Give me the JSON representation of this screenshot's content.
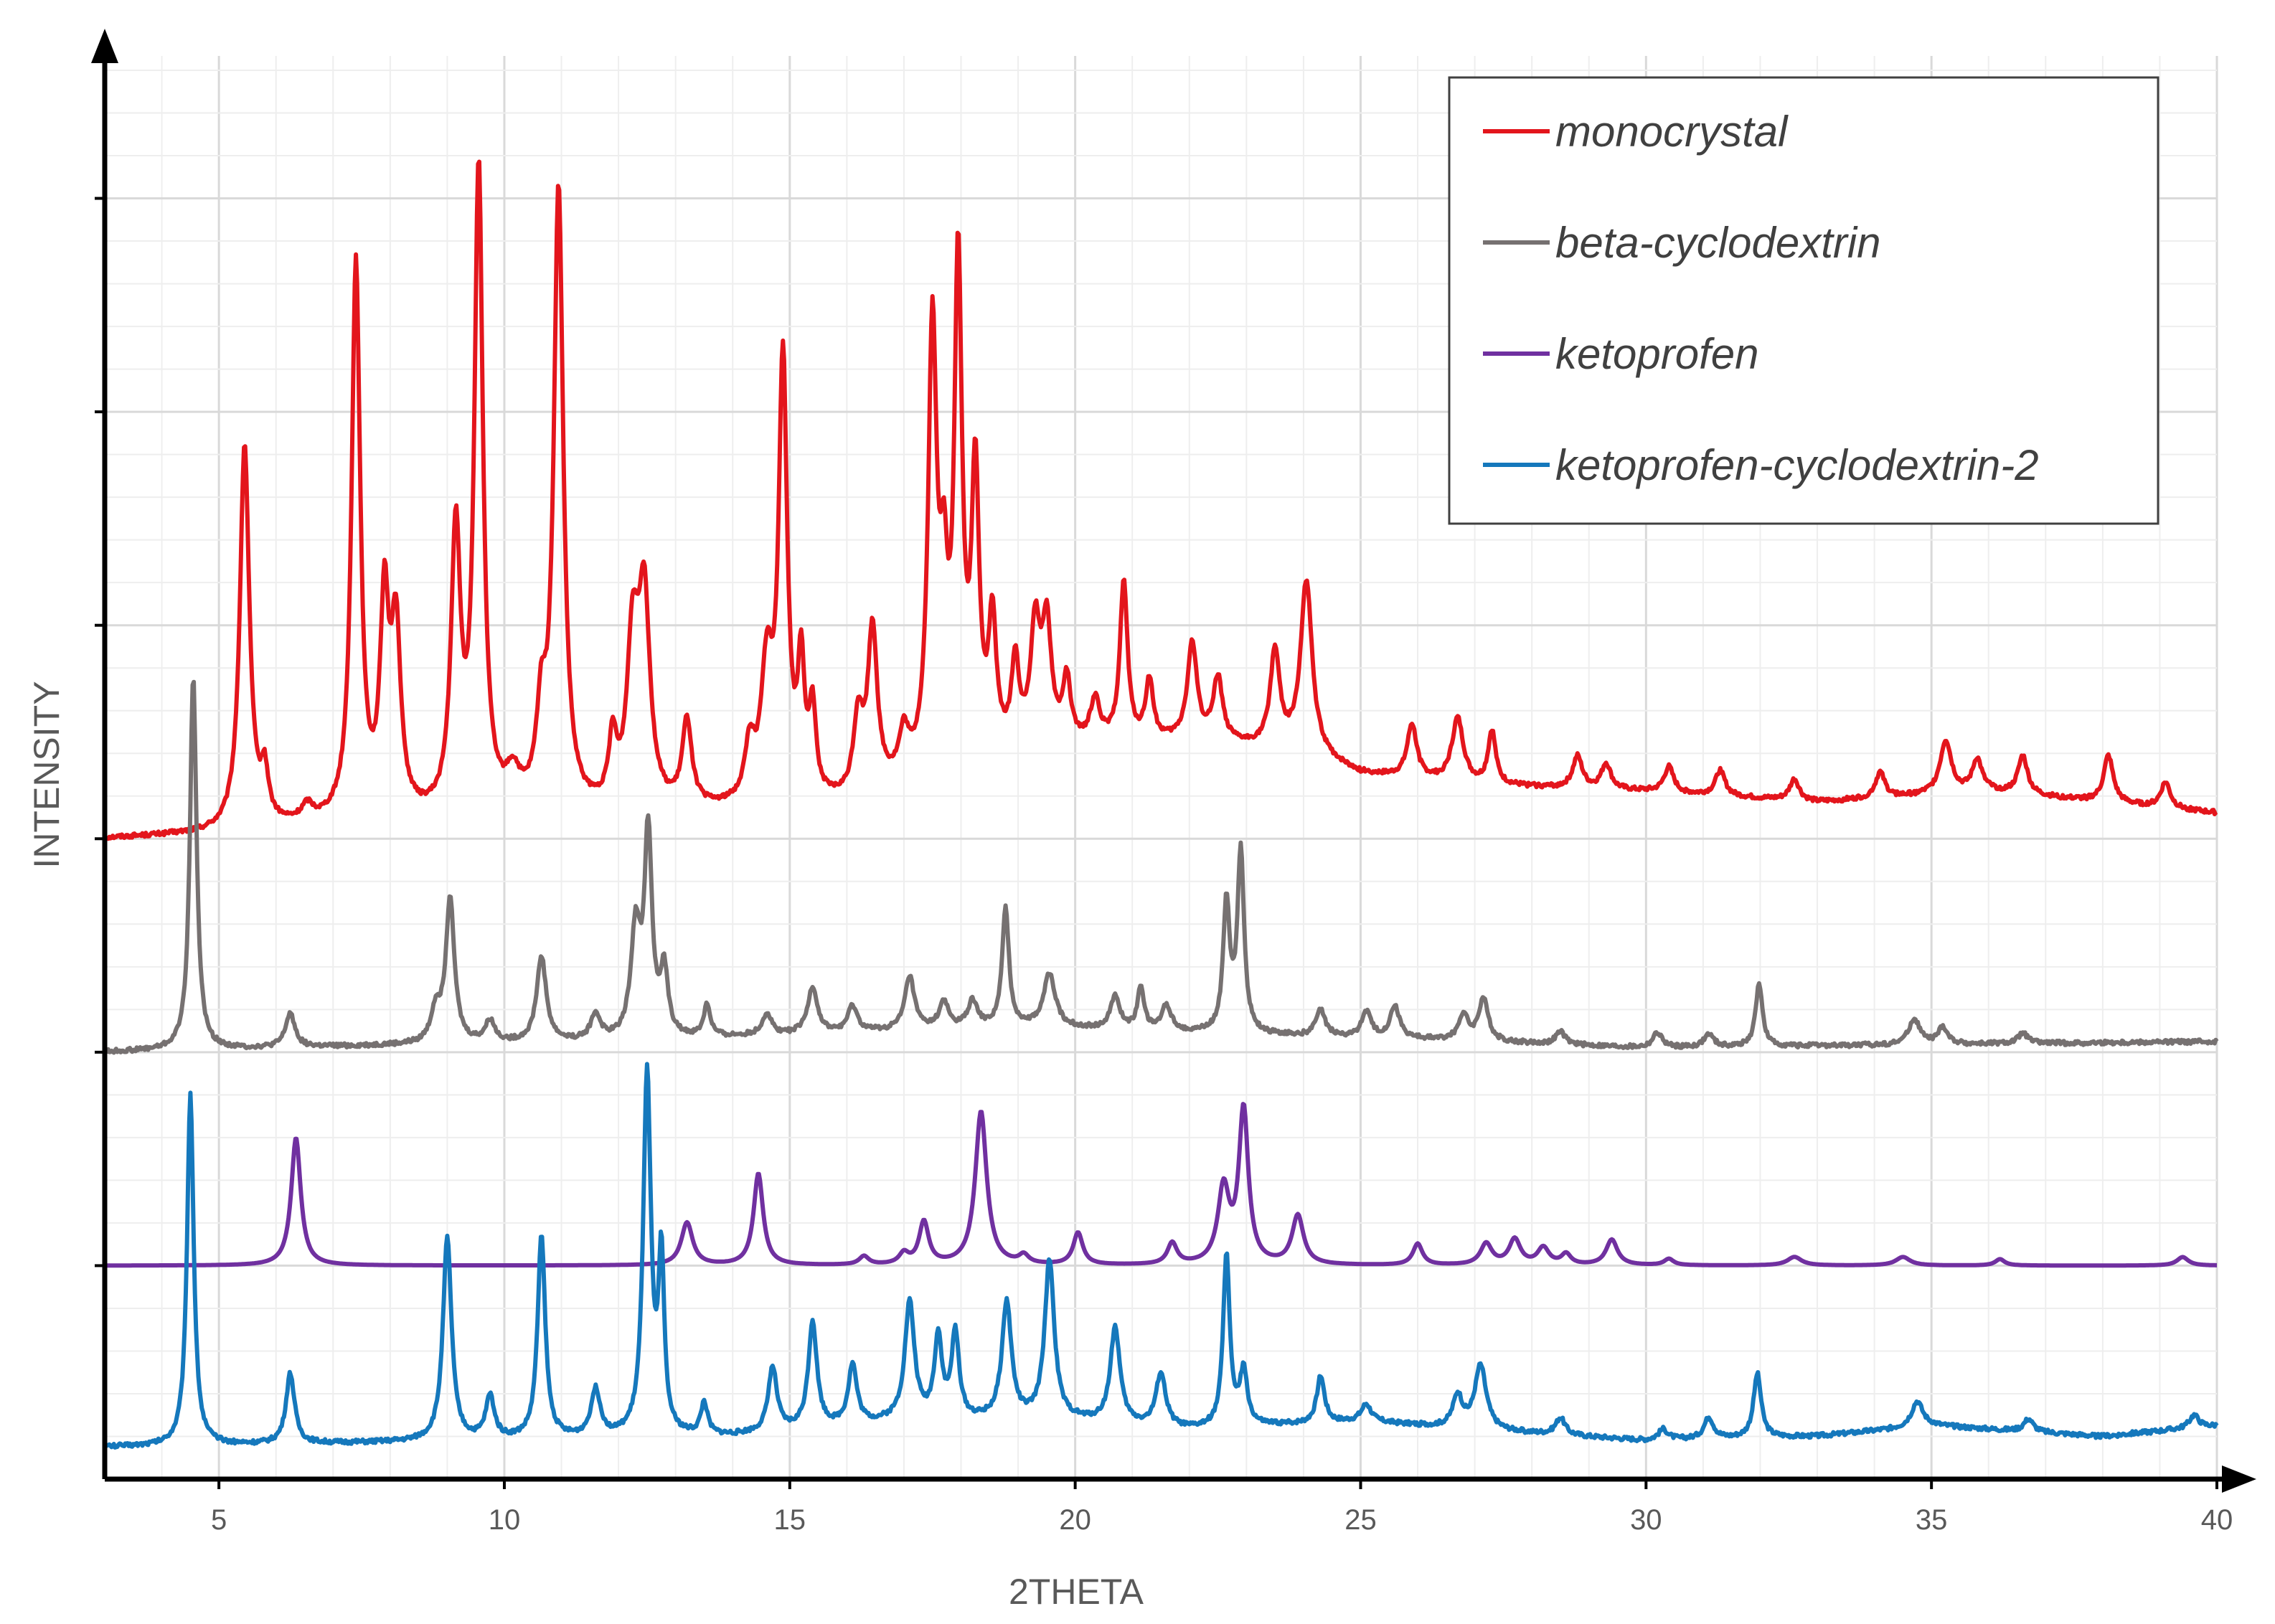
{
  "chart_data": {
    "type": "line",
    "title": "",
    "xlabel": "2THETA",
    "ylabel": "INTENSITY",
    "xlim": [
      3,
      40
    ],
    "ylim": [
      0,
      6.6
    ],
    "x_ticks": [
      5,
      10,
      15,
      20,
      25,
      30,
      35,
      40
    ],
    "x_tick_labels": [
      "5",
      "10",
      "15",
      "20",
      "25",
      "30",
      "35",
      "40"
    ],
    "y_tick_labels_shown": false,
    "grid": true,
    "legend_position": "top-right",
    "colors": {
      "axis": "#000000",
      "grid_major": "#d9d9d9",
      "grid_minor": "#eeeeee",
      "text": "#595959"
    },
    "series": [
      {
        "name": "monocrystal",
        "color": "#e3151c",
        "baseline": 3.0,
        "background": [
          [
            3,
            0
          ],
          [
            5,
            0.02
          ],
          [
            7,
            0.06
          ],
          [
            12,
            0.1
          ],
          [
            16,
            0.15
          ],
          [
            18.5,
            0.35
          ],
          [
            20,
            0.42
          ],
          [
            22,
            0.45
          ],
          [
            24,
            0.4
          ],
          [
            25,
            0.3
          ],
          [
            27,
            0.25
          ],
          [
            30,
            0.22
          ],
          [
            33,
            0.17
          ],
          [
            36,
            0.22
          ],
          [
            40,
            0.12
          ]
        ],
        "peaks": [
          [
            5.45,
            1.8,
            0.1
          ],
          [
            5.8,
            0.22,
            0.08
          ],
          [
            6.55,
            0.07,
            0.12
          ],
          [
            7.4,
            2.6,
            0.09
          ],
          [
            7.9,
            0.95,
            0.09
          ],
          [
            8.1,
            0.85,
            0.1
          ],
          [
            9.15,
            1.3,
            0.1
          ],
          [
            9.55,
            3.0,
            0.09
          ],
          [
            10.15,
            0.15,
            0.15
          ],
          [
            10.65,
            0.4,
            0.1
          ],
          [
            10.95,
            2.9,
            0.1
          ],
          [
            11.9,
            0.3,
            0.08
          ],
          [
            12.25,
            0.75,
            0.12
          ],
          [
            12.45,
            0.95,
            0.12
          ],
          [
            13.2,
            0.4,
            0.1
          ],
          [
            14.3,
            0.25,
            0.1
          ],
          [
            14.6,
            0.6,
            0.12
          ],
          [
            14.88,
            2.05,
            0.09
          ],
          [
            15.2,
            0.6,
            0.07
          ],
          [
            15.4,
            0.4,
            0.07
          ],
          [
            16.2,
            0.35,
            0.1
          ],
          [
            16.45,
            0.75,
            0.1
          ],
          [
            17.0,
            0.2,
            0.1
          ],
          [
            17.5,
            2.05,
            0.09
          ],
          [
            17.7,
            0.7,
            0.08
          ],
          [
            17.95,
            2.3,
            0.08
          ],
          [
            18.25,
            1.3,
            0.08
          ],
          [
            18.55,
            0.6,
            0.08
          ],
          [
            18.95,
            0.4,
            0.08
          ],
          [
            19.3,
            0.55,
            0.1
          ],
          [
            19.5,
            0.55,
            0.1
          ],
          [
            19.85,
            0.3,
            0.08
          ],
          [
            20.35,
            0.2,
            0.1
          ],
          [
            20.85,
            0.75,
            0.08
          ],
          [
            21.3,
            0.28,
            0.08
          ],
          [
            22.05,
            0.45,
            0.1
          ],
          [
            22.5,
            0.3,
            0.1
          ],
          [
            23.5,
            0.45,
            0.1
          ],
          [
            24.05,
            0.8,
            0.12
          ],
          [
            25.9,
            0.25,
            0.1
          ],
          [
            26.7,
            0.3,
            0.12
          ],
          [
            27.3,
            0.25,
            0.08
          ],
          [
            28.8,
            0.15,
            0.1
          ],
          [
            29.3,
            0.12,
            0.1
          ],
          [
            30.4,
            0.12,
            0.1
          ],
          [
            31.3,
            0.12,
            0.1
          ],
          [
            32.6,
            0.1,
            0.1
          ],
          [
            34.1,
            0.12,
            0.1
          ],
          [
            35.25,
            0.25,
            0.12
          ],
          [
            35.8,
            0.15,
            0.1
          ],
          [
            36.6,
            0.18,
            0.1
          ],
          [
            38.1,
            0.22,
            0.1
          ],
          [
            39.1,
            0.12,
            0.1
          ]
        ]
      },
      {
        "name": "beta-cyclodextrin",
        "color": "#767171",
        "baseline": 2.0,
        "background": [
          [
            3,
            0
          ],
          [
            8,
            0.03
          ],
          [
            12,
            0.05
          ],
          [
            17,
            0.1
          ],
          [
            19,
            0.12
          ],
          [
            21,
            0.1
          ],
          [
            23,
            0.08
          ],
          [
            26,
            0.06
          ],
          [
            30,
            0.02
          ],
          [
            40,
            0.05
          ]
        ],
        "peaks": [
          [
            4.55,
            1.75,
            0.07
          ],
          [
            6.25,
            0.16,
            0.1
          ],
          [
            8.8,
            0.15,
            0.1
          ],
          [
            9.05,
            0.68,
            0.09
          ],
          [
            9.75,
            0.1,
            0.1
          ],
          [
            10.65,
            0.4,
            0.1
          ],
          [
            11.6,
            0.12,
            0.1
          ],
          [
            12.3,
            0.5,
            0.1
          ],
          [
            12.52,
            0.95,
            0.08
          ],
          [
            12.8,
            0.3,
            0.08
          ],
          [
            13.55,
            0.15,
            0.07
          ],
          [
            14.6,
            0.1,
            0.1
          ],
          [
            15.4,
            0.22,
            0.1
          ],
          [
            16.1,
            0.12,
            0.1
          ],
          [
            17.1,
            0.25,
            0.1
          ],
          [
            17.7,
            0.12,
            0.1
          ],
          [
            18.2,
            0.12,
            0.1
          ],
          [
            18.78,
            0.55,
            0.07
          ],
          [
            19.55,
            0.25,
            0.12
          ],
          [
            20.7,
            0.15,
            0.1
          ],
          [
            21.15,
            0.2,
            0.07
          ],
          [
            21.6,
            0.12,
            0.1
          ],
          [
            22.65,
            0.6,
            0.07
          ],
          [
            22.9,
            0.85,
            0.07
          ],
          [
            24.3,
            0.12,
            0.1
          ],
          [
            25.1,
            0.12,
            0.1
          ],
          [
            25.6,
            0.15,
            0.1
          ],
          [
            26.8,
            0.12,
            0.1
          ],
          [
            27.15,
            0.2,
            0.1
          ],
          [
            28.5,
            0.06,
            0.1
          ],
          [
            30.2,
            0.07,
            0.1
          ],
          [
            31.1,
            0.06,
            0.1
          ],
          [
            31.98,
            0.3,
            0.07
          ],
          [
            34.7,
            0.12,
            0.12
          ],
          [
            35.2,
            0.08,
            0.1
          ],
          [
            36.6,
            0.05,
            0.1
          ]
        ]
      },
      {
        "name": "ketoprofen",
        "color": "#7030a0",
        "baseline": 1.0,
        "background": [
          [
            3,
            0
          ],
          [
            40,
            0
          ]
        ],
        "peaks": [
          [
            6.35,
            0.6,
            0.1
          ],
          [
            13.2,
            0.2,
            0.12
          ],
          [
            14.45,
            0.43,
            0.1
          ],
          [
            16.3,
            0.04,
            0.1
          ],
          [
            17.0,
            0.05,
            0.1
          ],
          [
            17.35,
            0.2,
            0.1
          ],
          [
            18.35,
            0.72,
            0.12
          ],
          [
            19.1,
            0.04,
            0.1
          ],
          [
            20.05,
            0.15,
            0.1
          ],
          [
            21.7,
            0.1,
            0.1
          ],
          [
            22.6,
            0.35,
            0.12
          ],
          [
            22.95,
            0.72,
            0.1
          ],
          [
            23.9,
            0.23,
            0.12
          ],
          [
            26.0,
            0.1,
            0.1
          ],
          [
            27.2,
            0.1,
            0.12
          ],
          [
            27.7,
            0.12,
            0.12
          ],
          [
            28.2,
            0.08,
            0.12
          ],
          [
            28.6,
            0.05,
            0.1
          ],
          [
            29.4,
            0.12,
            0.12
          ],
          [
            30.4,
            0.03,
            0.1
          ],
          [
            32.6,
            0.04,
            0.15
          ],
          [
            34.5,
            0.04,
            0.15
          ],
          [
            36.2,
            0.03,
            0.1
          ],
          [
            39.4,
            0.04,
            0.12
          ]
        ]
      },
      {
        "name": "ketoprofen-cyclodextrin-2",
        "color": "#1578bc",
        "baseline": 0.15,
        "background": [
          [
            3,
            0
          ],
          [
            8,
            0.02
          ],
          [
            14,
            0.05
          ],
          [
            17,
            0.12
          ],
          [
            20,
            0.12
          ],
          [
            22,
            0.08
          ],
          [
            25,
            0.12
          ],
          [
            27,
            0.08
          ],
          [
            30,
            0.03
          ],
          [
            33,
            0.05
          ],
          [
            35,
            0.1
          ],
          [
            38,
            0.05
          ],
          [
            40,
            0.1
          ]
        ],
        "peaks": [
          [
            4.5,
            1.65,
            0.07
          ],
          [
            6.25,
            0.33,
            0.09
          ],
          [
            9.0,
            0.95,
            0.09
          ],
          [
            9.75,
            0.2,
            0.09
          ],
          [
            10.65,
            0.95,
            0.08
          ],
          [
            11.6,
            0.22,
            0.1
          ],
          [
            12.5,
            1.7,
            0.08
          ],
          [
            12.75,
            0.8,
            0.06
          ],
          [
            13.5,
            0.15,
            0.07
          ],
          [
            14.7,
            0.3,
            0.09
          ],
          [
            15.4,
            0.5,
            0.09
          ],
          [
            16.1,
            0.28,
            0.09
          ],
          [
            17.1,
            0.55,
            0.1
          ],
          [
            17.6,
            0.38,
            0.08
          ],
          [
            17.9,
            0.4,
            0.08
          ],
          [
            18.8,
            0.55,
            0.1
          ],
          [
            19.55,
            0.75,
            0.1
          ],
          [
            20.7,
            0.45,
            0.1
          ],
          [
            21.5,
            0.25,
            0.1
          ],
          [
            22.65,
            0.8,
            0.07
          ],
          [
            22.95,
            0.25,
            0.08
          ],
          [
            24.3,
            0.22,
            0.08
          ],
          [
            25.1,
            0.08,
            0.1
          ],
          [
            26.7,
            0.15,
            0.1
          ],
          [
            27.1,
            0.3,
            0.12
          ],
          [
            28.5,
            0.08,
            0.1
          ],
          [
            30.3,
            0.05,
            0.1
          ],
          [
            31.1,
            0.1,
            0.1
          ],
          [
            31.95,
            0.3,
            0.08
          ],
          [
            34.75,
            0.12,
            0.12
          ],
          [
            36.7,
            0.06,
            0.1
          ],
          [
            39.6,
            0.06,
            0.1
          ]
        ]
      }
    ]
  }
}
